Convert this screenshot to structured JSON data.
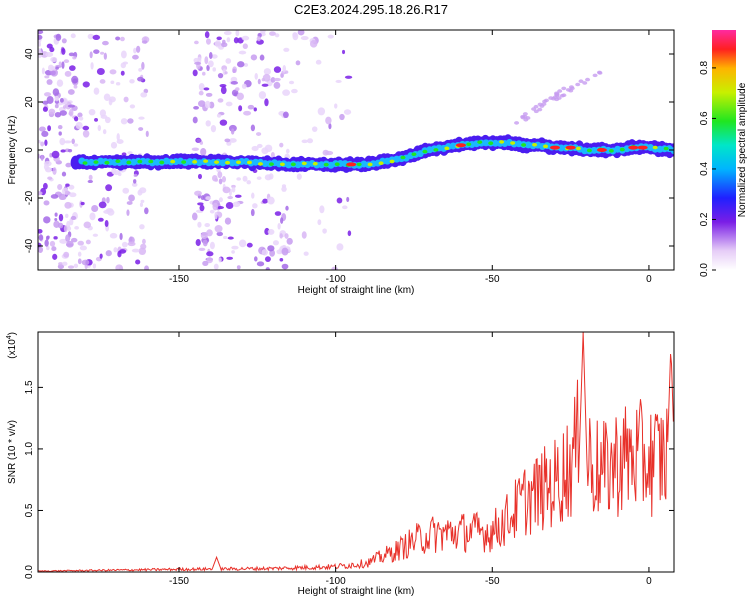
{
  "title": "C2E3.2024.295.18.26.R17",
  "chart_data": [
    {
      "type": "heatmap",
      "xlabel": "Height of straight line (km)",
      "ylabel": "Frequency (Hz)",
      "xlim": [
        -195,
        8
      ],
      "ylim": [
        -50,
        50
      ],
      "xticks": [
        -150,
        -100,
        -50,
        0
      ],
      "yticks": [
        40,
        20,
        0,
        -20,
        -40
      ],
      "colorbar": {
        "label": "Normalized spectral amplitude",
        "range": [
          0.0,
          0.95
        ],
        "ticks": [
          0.0,
          0.2,
          0.4,
          0.6,
          0.8
        ]
      },
      "ridge": {
        "x": [
          -183,
          -170,
          -150,
          -130,
          -115,
          -100,
          -90,
          -85,
          -80,
          -75,
          -70,
          -65,
          -60,
          -55,
          -50,
          -45,
          -40,
          -35,
          -30,
          -25,
          -20,
          -15,
          -10,
          -5,
          0,
          8
        ],
        "frequency": [
          -5,
          -5,
          -5,
          -5,
          -6,
          -6,
          -6,
          -5,
          -4,
          -2,
          0,
          1,
          2,
          3,
          3,
          3,
          2,
          2,
          1,
          1,
          0,
          0,
          0,
          1,
          1,
          0
        ]
      },
      "faint_branch": {
        "x": [
          -45,
          -35,
          -25,
          -15
        ],
        "frequency": [
          8,
          18,
          26,
          33
        ]
      }
    },
    {
      "type": "line",
      "xlabel": "Height of straight line (km)",
      "ylabel": "SNR (10 * v/v)",
      "multiplier_label": "(x10",
      "multiplier_exp": "4",
      "multiplier_close": ")",
      "xlim": [
        -195,
        8
      ],
      "ylim": [
        0,
        1.95
      ],
      "xticks": [
        -150,
        -100,
        -50,
        0
      ],
      "yticks": [
        0.0,
        0.5,
        1.0,
        1.5
      ],
      "color": "#e8312a",
      "envelope": {
        "x": [
          -195,
          -150,
          -120,
          -100,
          -90,
          -80,
          -75,
          -70,
          -60,
          -50,
          -45,
          -40,
          -35,
          -30,
          -25,
          -22,
          -20,
          -15,
          -10,
          -5,
          0,
          5,
          8
        ],
        "y": [
          0.01,
          0.03,
          0.04,
          0.06,
          0.1,
          0.25,
          0.35,
          0.42,
          0.45,
          0.45,
          0.6,
          0.8,
          0.9,
          1.0,
          1.2,
          1.5,
          1.3,
          1.1,
          1.25,
          1.3,
          1.25,
          1.3,
          1.35
        ]
      },
      "peaks": [
        {
          "x": -138,
          "y": 0.12
        },
        {
          "x": -21,
          "y": 1.95
        },
        {
          "x": 7,
          "y": 1.85
        }
      ]
    }
  ]
}
